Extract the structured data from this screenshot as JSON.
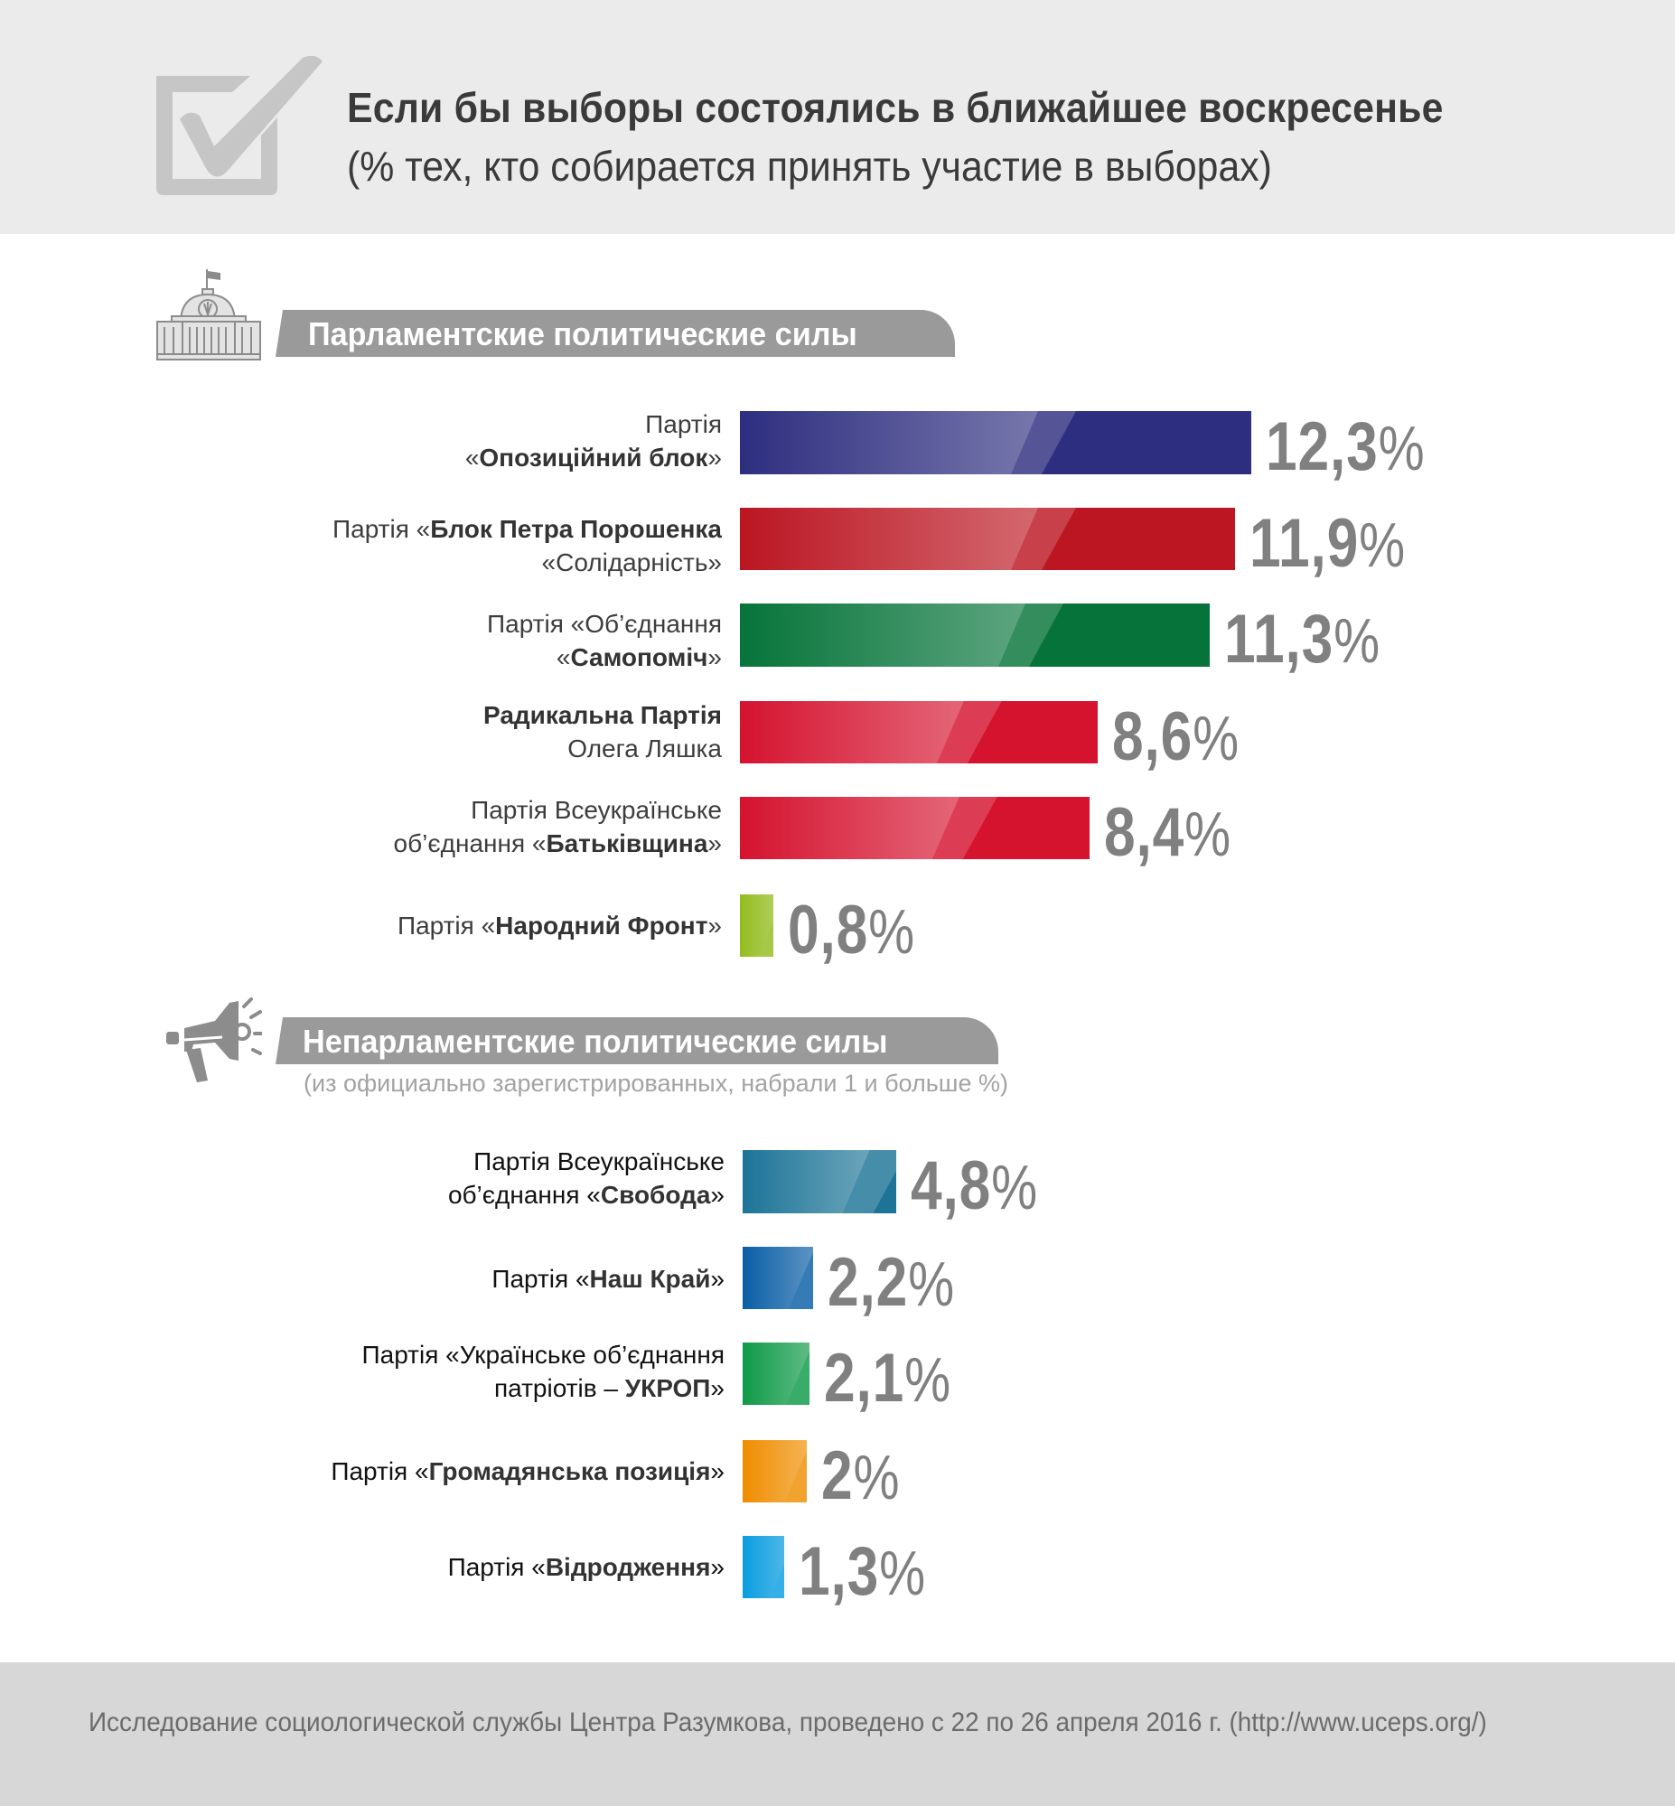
{
  "header": {
    "title": "Если бы выборы состоялись в ближайшее воскресенье",
    "subtitle": "(% тех, кто собирается принять участие в выборах)",
    "icon": "checkbox-check-icon"
  },
  "sections": [
    {
      "title": "Парламентские политические силы",
      "icon": "parliament-building-icon",
      "note": "",
      "rows": [
        {
          "line1_pre": "Партія",
          "line1_bold": "",
          "line1_post": "",
          "line2_pre": "«",
          "line2_bold": "Опозиційний блок",
          "line2_post": "»",
          "value": "12,3",
          "pct": "%",
          "color": "#2e2e80"
        },
        {
          "line1_pre": "Партія «",
          "line1_bold": "Блок Петра Порошенка",
          "line1_post": "",
          "line2_pre": "«Солідарність»",
          "line2_bold": "",
          "line2_post": "",
          "value": "11,9",
          "pct": "%",
          "color": "#bb1622"
        },
        {
          "line1_pre": "Партія «Об’єднання",
          "line1_bold": "",
          "line1_post": "",
          "line2_pre": "«",
          "line2_bold": "Самопоміч",
          "line2_post": "»",
          "value": "11,3",
          "pct": "%",
          "color": "#06743a"
        },
        {
          "line1_pre": "",
          "line1_bold": "Радикальна Партія",
          "line1_post": "",
          "line2_pre": "Олега Ляшка",
          "line2_bold": "",
          "line2_post": "",
          "value": "8,6",
          "pct": "%",
          "color": "#d5132f"
        },
        {
          "line1_pre": "Партія Всеукраїнське",
          "line1_bold": "",
          "line1_post": "",
          "line2_pre": "об’єднання «",
          "line2_bold": "Батьківщина",
          "line2_post": "»",
          "value": "8,4",
          "pct": "%",
          "color": "#d5132f"
        },
        {
          "line1_pre": "Партія «",
          "line1_bold": "Народний Фронт",
          "line1_post": "»",
          "line2_pre": "",
          "line2_bold": "",
          "line2_post": "",
          "value": "0,8",
          "pct": "%",
          "color": "#93bc1f"
        }
      ]
    },
    {
      "title": "Непарламентские политические силы",
      "icon": "megaphone-icon",
      "note": "(из официально зарегистрированных, набрали 1 и больше %)",
      "rows": [
        {
          "line1_pre": "Партія Всеукраїнське",
          "line1_bold": "",
          "line1_post": "",
          "line2_pre": "об’єднання «",
          "line2_bold": "Свобода",
          "line2_post": "»",
          "value": "4,8",
          "pct": "%",
          "color": "#1d7497"
        },
        {
          "line1_pre": "Партія «",
          "line1_bold": "Наш Край",
          "line1_post": "»",
          "line2_pre": "",
          "line2_bold": "",
          "line2_post": "",
          "value": "2,2",
          "pct": "%",
          "color": "#0a5ea6"
        },
        {
          "line1_pre": "Партія «Українське об’єднання",
          "line1_bold": "",
          "line1_post": "",
          "line2_pre": "патріотів – ",
          "line2_bold": "УКРОП",
          "line2_post": "»",
          "value": "2,1",
          "pct": "%",
          "color": "#0f9a48"
        },
        {
          "line1_pre": "Партія «",
          "line1_bold": "Громадянська позиція",
          "line1_post": "»",
          "line2_pre": "",
          "line2_bold": "",
          "line2_post": "",
          "value": "2",
          "pct": "%",
          "color": "#ef8d00"
        },
        {
          "line1_pre": "Партія «",
          "line1_bold": "Відродження",
          "line1_post": "»",
          "line2_pre": "",
          "line2_bold": "",
          "line2_post": "",
          "value": "1,3",
          "pct": "%",
          "color": "#0a9de0"
        }
      ]
    }
  ],
  "footer": {
    "text": "Исследование социологической службы Центра Разумкова, проведено с 22 по 26 апреля 2016 г. (http://www.uceps.org/)"
  },
  "chart_data": {
    "type": "bar",
    "orientation": "horizontal",
    "title": "Если бы выборы состоялись в ближайшее воскресенье",
    "subtitle": "(% тех, кто собирается принять участие в выборах)",
    "xlabel": "",
    "ylabel": "",
    "unit": "%",
    "grid": false,
    "legend": "none",
    "groups": [
      {
        "name": "Парламентские политические силы",
        "categories": [
          "Партія «Опозиційний блок»",
          "Партія «Блок Петра Порошенка «Солідарність»",
          "Партія «Об’єднання «Самопоміч»",
          "Радикальна Партія Олега Ляшка",
          "Партія Всеукраїнське об’єднання «Батьківщина»",
          "Партія «Народний Фронт»"
        ],
        "values": [
          12.3,
          11.9,
          11.3,
          8.6,
          8.4,
          0.8
        ],
        "colors": [
          "#2e2e80",
          "#bb1622",
          "#06743a",
          "#d5132f",
          "#d5132f",
          "#93bc1f"
        ]
      },
      {
        "name": "Непарламентские политические силы",
        "note": "(из официально зарегистрированных, набрали 1 и больше %)",
        "categories": [
          "Партія Всеукраїнське об’єднання «Свобода»",
          "Партія «Наш Край»",
          "Партія «Українське об’єднання патріотів – УКРОП»",
          "Партія «Громадянська позиція»",
          "Партія «Відродження»"
        ],
        "values": [
          4.8,
          2.2,
          2.1,
          2.0,
          1.3
        ],
        "colors": [
          "#1d7497",
          "#0a5ea6",
          "#0f9a48",
          "#ef8d00",
          "#0a9de0"
        ]
      }
    ],
    "source": "Исследование социологической службы Центра Разумкова, проведено с 22 по 26 апреля 2016 г. (http://www.uceps.org/)"
  }
}
